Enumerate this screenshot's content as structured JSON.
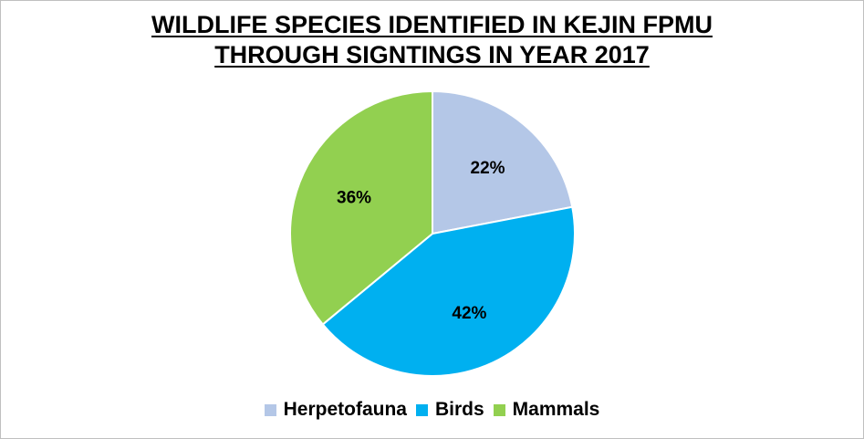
{
  "chart_data": {
    "type": "pie",
    "title_line1": "WILDLIFE SPECIES IDENTIFIED IN KEJIN FPMU",
    "title_line2": "THROUGH SIGNTINGS IN YEAR 2017",
    "slices": [
      {
        "label": "Herpetofauna",
        "value": 22,
        "display": "22%",
        "color": "#b4c7e7"
      },
      {
        "label": "Birds",
        "value": 42,
        "display": "42%",
        "color": "#00b0f0"
      },
      {
        "label": "Mammals",
        "value": 36,
        "display": "36%",
        "color": "#92d050"
      }
    ],
    "legend_position": "bottom"
  }
}
